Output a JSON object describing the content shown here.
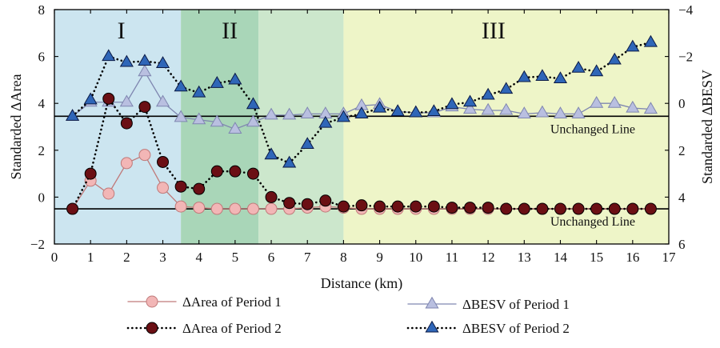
{
  "chart_data": {
    "type": "line",
    "xlabel": "Distance (km)",
    "ylabel_left": "Standarded ΔArea",
    "ylabel_right": "Standarded ΔBESV",
    "xlim": [
      0,
      17
    ],
    "ylim_left": [
      -2,
      8
    ],
    "ylim_right": [
      6,
      -4
    ],
    "x_ticks": [
      "0",
      "1",
      "2",
      "3",
      "4",
      "5",
      "6",
      "7",
      "8",
      "9",
      "10",
      "11",
      "12",
      "13",
      "14",
      "15",
      "16",
      "17"
    ],
    "y_left_ticks": [
      "−2",
      "0",
      "2",
      "4",
      "6",
      "8"
    ],
    "y_right_ticks": [
      "6",
      "4",
      "2",
      "0",
      "−2",
      "−4"
    ],
    "grid": false,
    "legend_position": "bottom",
    "zones": [
      {
        "label": "I",
        "x_start": 0,
        "x_end": 3.5,
        "color": "#cce5f0"
      },
      {
        "label": "II",
        "x_start": 3.5,
        "x_end": 5.65,
        "color": "#a9d6b8"
      },
      {
        "label": "",
        "x_start": 5.65,
        "x_end": 8.0,
        "color": "#cce7cc"
      },
      {
        "label": "III",
        "x_start": 8.0,
        "x_end": 17,
        "color": "#eef5c8"
      }
    ],
    "reference_lines": [
      {
        "label": "Unchanged Line",
        "axis": "left",
        "y": -0.5
      },
      {
        "label": "Unchanged Line",
        "axis": "right",
        "y": 0.55
      }
    ],
    "series": [
      {
        "name": "ΔArea of Period 1",
        "axis": "left",
        "style": "solid",
        "marker": "circle",
        "color": "#f2b6b6",
        "edge": "#c07a7a",
        "x": [
          0.5,
          1,
          1.5,
          2,
          2.5,
          3,
          3.5,
          4,
          4.5,
          5,
          5.5,
          6,
          6.5,
          7,
          7.5,
          8,
          8.5,
          9,
          9.5,
          10,
          10.5,
          11,
          11.5,
          12,
          12.5,
          13,
          13.5,
          14,
          14.5,
          15,
          15.5,
          16,
          16.5
        ],
        "values": [
          -0.5,
          0.7,
          0.15,
          1.45,
          1.8,
          0.4,
          -0.4,
          -0.45,
          -0.5,
          -0.5,
          -0.5,
          -0.5,
          -0.5,
          -0.45,
          -0.4,
          -0.45,
          -0.5,
          -0.5,
          -0.5,
          -0.5,
          -0.5,
          -0.5,
          -0.5,
          -0.5,
          -0.5,
          -0.5,
          -0.5,
          -0.5,
          -0.5,
          -0.5,
          -0.5,
          -0.5,
          -0.5
        ]
      },
      {
        "name": "ΔArea of Period 2",
        "axis": "left",
        "style": "dotted",
        "marker": "circle",
        "color": "#6b0f14",
        "edge": "#000000",
        "x": [
          0.5,
          1,
          1.5,
          2,
          2.5,
          3,
          3.5,
          4,
          4.5,
          5,
          5.5,
          6,
          6.5,
          7,
          7.5,
          8,
          8.5,
          9,
          9.5,
          10,
          10.5,
          11,
          11.5,
          12,
          12.5,
          13,
          13.5,
          14,
          14.5,
          15,
          15.5,
          16,
          16.5
        ],
        "values": [
          -0.5,
          1.0,
          4.2,
          3.15,
          3.85,
          1.5,
          0.45,
          0.35,
          1.1,
          1.1,
          1.0,
          0.0,
          -0.25,
          -0.3,
          -0.15,
          -0.4,
          -0.35,
          -0.4,
          -0.4,
          -0.4,
          -0.4,
          -0.45,
          -0.45,
          -0.45,
          -0.5,
          -0.5,
          -0.5,
          -0.5,
          -0.5,
          -0.5,
          -0.5,
          -0.5,
          -0.5
        ]
      },
      {
        "name": "ΔBESV of Period 1",
        "axis": "right",
        "style": "solid",
        "marker": "triangle",
        "color": "#b9bfe0",
        "edge": "#7f86b0",
        "x": [
          0.5,
          1,
          1.5,
          2,
          2.5,
          3,
          3.5,
          4,
          4.5,
          5,
          5.5,
          6,
          6.5,
          7,
          7.5,
          8,
          8.5,
          9,
          9.5,
          10,
          10.5,
          11,
          11.5,
          12,
          12.5,
          13,
          13.5,
          14,
          14.5,
          15,
          15.5,
          16,
          16.5
        ],
        "values": [
          0.55,
          -0.05,
          -0.05,
          -0.05,
          -1.35,
          -0.05,
          0.6,
          0.7,
          0.8,
          1.1,
          0.8,
          0.5,
          0.5,
          0.45,
          0.45,
          0.45,
          0.1,
          0.05,
          0.35,
          0.4,
          0.4,
          0.15,
          0.25,
          0.3,
          0.3,
          0.45,
          0.4,
          0.45,
          0.45,
          0.0,
          0.0,
          0.2,
          0.25
        ]
      },
      {
        "name": "ΔBESV of Period 2",
        "axis": "right",
        "style": "dotted",
        "marker": "triangle",
        "color": "#2f66b8",
        "edge": "#0b1a45",
        "x": [
          0.5,
          1,
          1.5,
          2,
          2.5,
          3,
          3.5,
          4,
          4.5,
          5,
          5.5,
          6,
          6.5,
          7,
          7.5,
          8,
          8.5,
          9,
          9.5,
          10,
          10.5,
          11,
          11.5,
          12,
          12.5,
          13,
          13.5,
          14,
          14.5,
          15,
          15.5,
          16,
          16.5
        ],
        "values": [
          0.55,
          -0.15,
          -2.0,
          -1.75,
          -1.8,
          -1.7,
          -0.7,
          -0.45,
          -0.85,
          -1.0,
          0.05,
          2.2,
          2.55,
          1.75,
          0.85,
          0.6,
          0.45,
          0.2,
          0.35,
          0.4,
          0.35,
          0.05,
          -0.05,
          -0.35,
          -0.6,
          -1.1,
          -1.15,
          -1.05,
          -1.5,
          -1.35,
          -1.85,
          -2.4,
          -2.6
        ]
      }
    ]
  }
}
